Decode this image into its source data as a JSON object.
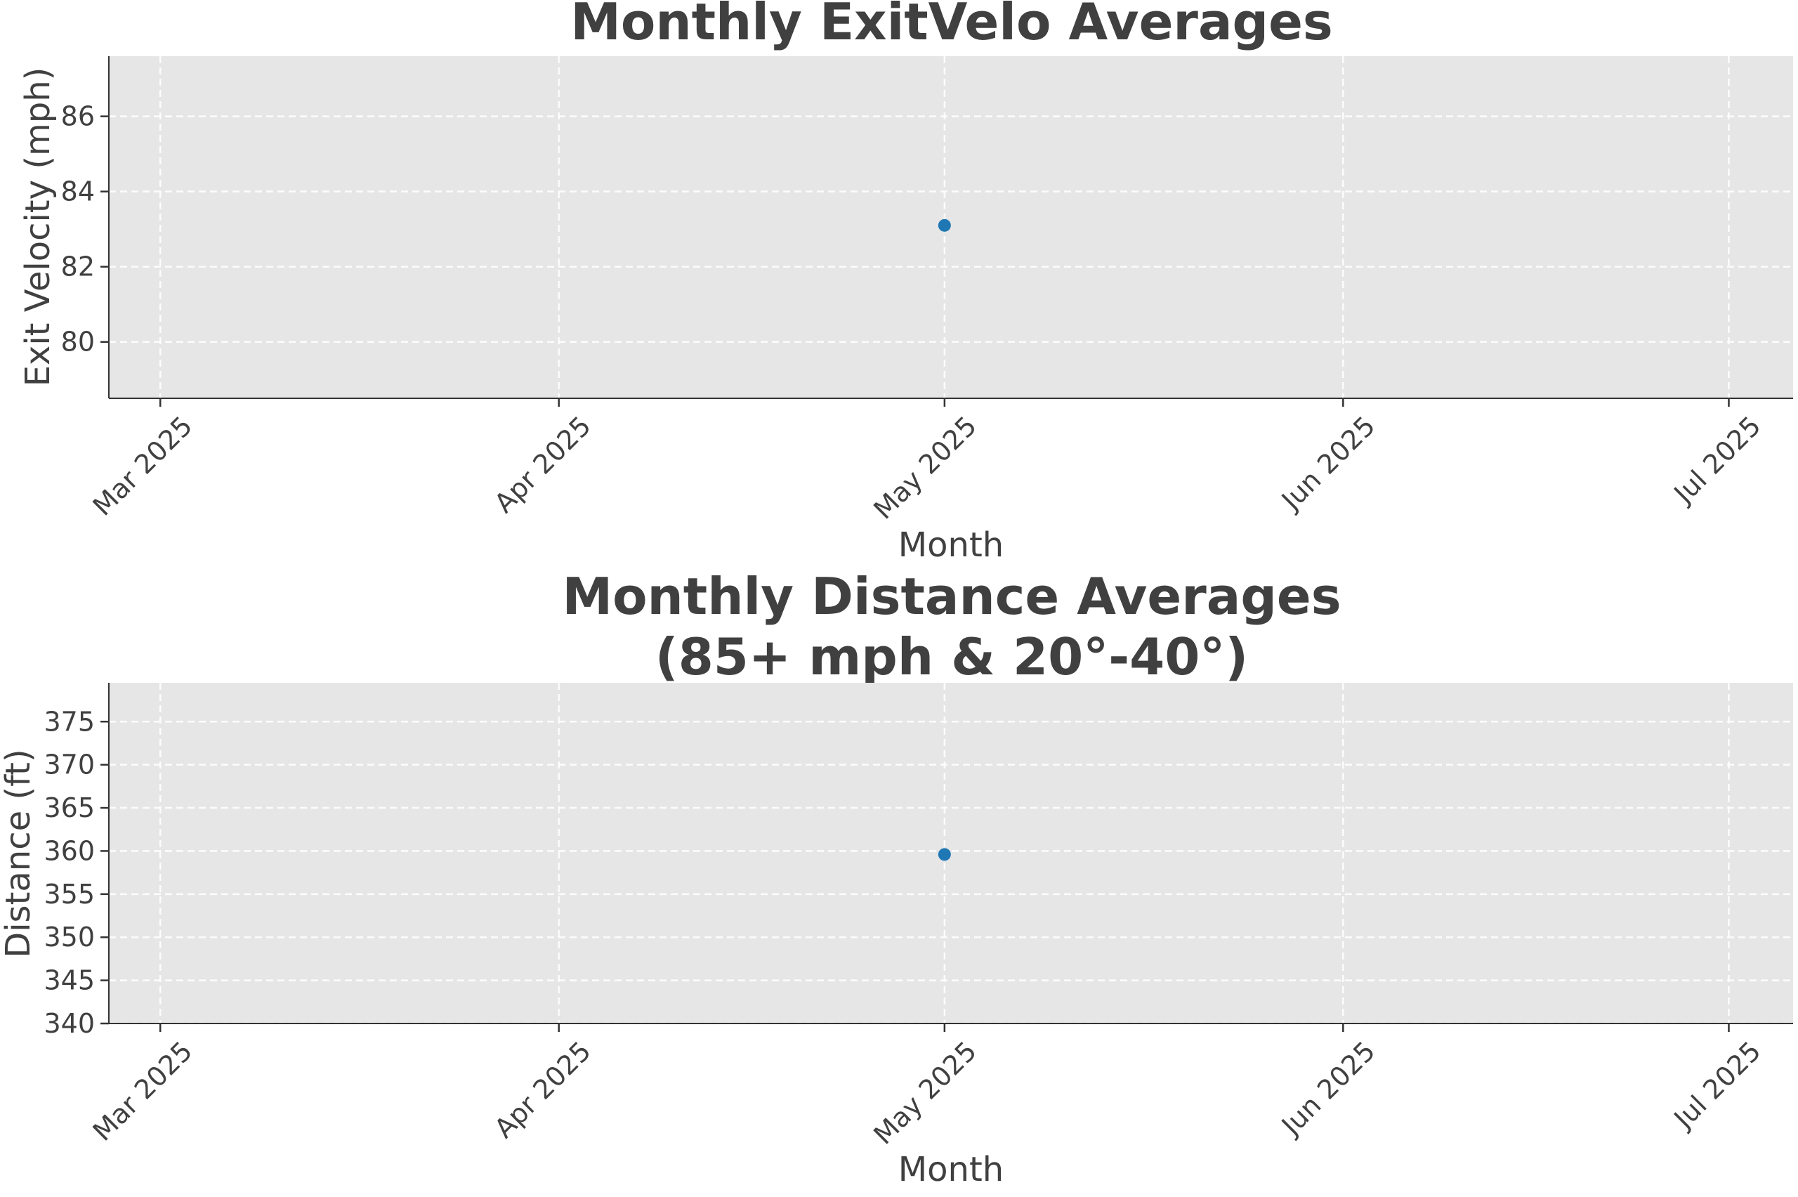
{
  "chart_data": [
    {
      "type": "scatter",
      "title": "Monthly ExitVelo Averages",
      "xlabel": "Month",
      "ylabel": "Exit Velocity (mph)",
      "x_ticks": [
        "Mar 2025",
        "Apr 2025",
        "May 2025",
        "Jun 2025",
        "Jul 2025"
      ],
      "x_tick_dates": [
        "2025-03-01",
        "2025-04-01",
        "2025-05-01",
        "2025-06-01",
        "2025-07-01"
      ],
      "xlim": [
        "2025-02-25",
        "2025-07-06"
      ],
      "y_ticks": [
        80,
        82,
        84,
        86
      ],
      "ylim": [
        78.5,
        87.6
      ],
      "grid": true,
      "series": [
        {
          "x": [
            "2025-05-01"
          ],
          "y": [
            83.1
          ],
          "color": "#1f77b4"
        }
      ]
    },
    {
      "type": "scatter",
      "title": "Monthly Distance Averages\n(85+ mph & 20°-40°)",
      "title_lines": [
        "Monthly Distance Averages",
        "(85+ mph & 20°-40°)"
      ],
      "xlabel": "Month",
      "ylabel": "Distance (ft)",
      "x_ticks": [
        "Mar 2025",
        "Apr 2025",
        "May 2025",
        "Jun 2025",
        "Jul 2025"
      ],
      "x_tick_dates": [
        "2025-03-01",
        "2025-04-01",
        "2025-05-01",
        "2025-06-01",
        "2025-07-01"
      ],
      "xlim": [
        "2025-02-25",
        "2025-07-06"
      ],
      "y_ticks": [
        340,
        345,
        350,
        355,
        360,
        365,
        370,
        375
      ],
      "ylim": [
        340,
        379.5
      ],
      "grid": true,
      "series": [
        {
          "x": [
            "2025-05-01"
          ],
          "y": [
            359.6
          ],
          "color": "#1f77b4"
        }
      ]
    }
  ]
}
